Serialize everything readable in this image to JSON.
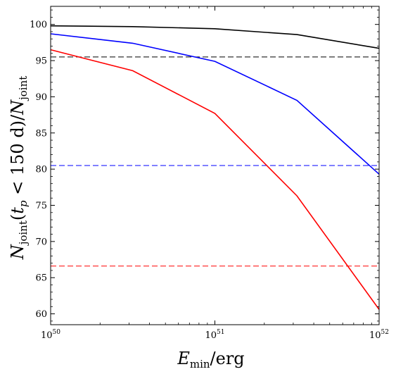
{
  "chart_data": {
    "type": "line",
    "x_scale": "log",
    "xlim": [
      1e+50,
      1e+52
    ],
    "ylim": [
      58.5,
      102.5
    ],
    "grid": false,
    "legend": "none",
    "x": [
      1e+50,
      3.16e+50,
      1e+51,
      3.16e+51,
      1e+52
    ],
    "x_ticks": [
      {
        "value": 1e+50,
        "base": "10",
        "exp": "50"
      },
      {
        "value": 1e+51,
        "base": "10",
        "exp": "51"
      },
      {
        "value": 1e+52,
        "base": "10",
        "exp": "52"
      }
    ],
    "y_ticks": [
      60,
      65,
      70,
      75,
      80,
      85,
      90,
      95,
      100
    ],
    "xlabel": {
      "main": "E",
      "sub": "min",
      "rest": "/erg"
    },
    "ylabel": {
      "n1": "N",
      "s1": "joint",
      "open": "(",
      "t": "t",
      "s2": "p",
      "mid": " < 150 d)/",
      "n2": "N",
      "s3": "joint"
    },
    "series": [
      {
        "color": "#000000",
        "values": [
          99.8,
          99.7,
          99.4,
          98.6,
          96.7
        ]
      },
      {
        "color": "#0000ff",
        "values": [
          98.7,
          97.4,
          94.9,
          89.5,
          79.3
        ]
      },
      {
        "color": "#ff0000",
        "values": [
          96.5,
          93.6,
          87.7,
          76.3,
          60.6
        ]
      }
    ],
    "hlines": [
      {
        "value": 95.5,
        "color": "#000000",
        "style": "dashed"
      },
      {
        "value": 80.5,
        "color": "#0000ff",
        "style": "dashed"
      },
      {
        "value": 66.6,
        "color": "#ff0000",
        "style": "dashed"
      }
    ]
  }
}
